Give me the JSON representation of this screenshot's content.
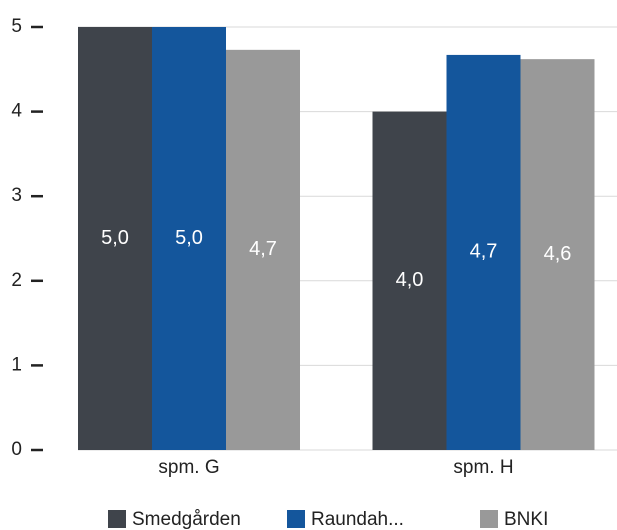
{
  "chart_data": {
    "type": "bar",
    "categories": [
      "spm. G",
      "spm. H"
    ],
    "series": [
      {
        "name": "Smedgården",
        "color": "#3f444b",
        "values": [
          5.0,
          4.0
        ],
        "value_labels": [
          "5,0",
          "4,0"
        ]
      },
      {
        "name": "Raundah...",
        "color": "#14569c",
        "values": [
          5.0,
          4.67
        ],
        "value_labels": [
          "5,0",
          "4,7"
        ]
      },
      {
        "name": "BNKI",
        "color": "#999999",
        "values": [
          4.73,
          4.62
        ],
        "value_labels": [
          "4,7",
          "4,6"
        ]
      }
    ],
    "ylim": [
      0,
      5
    ],
    "yticks": [
      0,
      1,
      2,
      3,
      4,
      5
    ],
    "grid": true,
    "legend": "bottom"
  }
}
